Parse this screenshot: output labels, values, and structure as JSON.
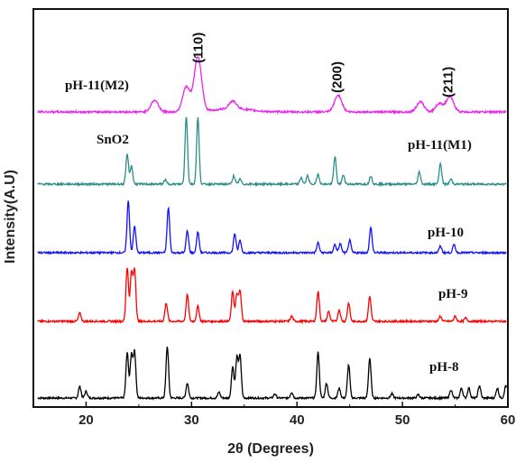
{
  "chart_data": {
    "type": "line",
    "xlabel": "2θ (Degrees)",
    "ylabel": "Intensity(A.U)",
    "xlim": [
      15,
      60
    ],
    "xticks": [
      "20",
      "30",
      "40",
      "50",
      "60"
    ],
    "grid": false,
    "legend": "none",
    "peak_labels": [
      {
        "text": "(110)",
        "x": 30.6
      },
      {
        "text": "(200)",
        "x": 43.8
      },
      {
        "text": "(211)",
        "x": 54.3
      }
    ],
    "annotations": [
      {
        "text": "SnO2",
        "x": 23.9
      }
    ],
    "series": [
      {
        "name": "pH-8",
        "color": "#000000",
        "peaks": [
          [
            19.4,
            14
          ],
          [
            20,
            8
          ],
          [
            23.9,
            55
          ],
          [
            24.3,
            52
          ],
          [
            24.6,
            55
          ],
          [
            27.7,
            62
          ],
          [
            29.6,
            18
          ],
          [
            32.6,
            7
          ],
          [
            33.9,
            38
          ],
          [
            34.3,
            48
          ],
          [
            34.6,
            50
          ],
          [
            37.9,
            5
          ],
          [
            39.5,
            7
          ],
          [
            42,
            55
          ],
          [
            42.8,
            18
          ],
          [
            44,
            12
          ],
          [
            44.9,
            40
          ],
          [
            46.9,
            48
          ],
          [
            49,
            5
          ],
          [
            51.5,
            4
          ],
          [
            54.6,
            10
          ],
          [
            55.6,
            12
          ],
          [
            56.3,
            12
          ],
          [
            57.3,
            15
          ],
          [
            59,
            12
          ],
          [
            59.8,
            15
          ]
        ]
      },
      {
        "name": "pH-9",
        "color": "#ff0000",
        "peaks": [
          [
            19.4,
            10
          ],
          [
            23.9,
            65
          ],
          [
            24.3,
            58
          ],
          [
            24.6,
            62
          ],
          [
            27.6,
            22
          ],
          [
            29.6,
            32
          ],
          [
            30.6,
            18
          ],
          [
            33.9,
            36
          ],
          [
            34.3,
            32
          ],
          [
            34.6,
            36
          ],
          [
            39.5,
            6
          ],
          [
            42,
            36
          ],
          [
            43,
            12
          ],
          [
            44,
            14
          ],
          [
            44.9,
            22
          ],
          [
            46.9,
            30
          ],
          [
            53.6,
            6
          ],
          [
            55,
            6
          ],
          [
            56,
            4
          ]
        ]
      },
      {
        "name": "pH-10",
        "color": "#1111ff",
        "peaks": [
          [
            24,
            62
          ],
          [
            24.6,
            32
          ],
          [
            27.8,
            54
          ],
          [
            29.6,
            26
          ],
          [
            30.6,
            25
          ],
          [
            34.1,
            23
          ],
          [
            34.6,
            15
          ],
          [
            42,
            12
          ],
          [
            43.6,
            10
          ],
          [
            44.1,
            11
          ],
          [
            45,
            15
          ],
          [
            47,
            30
          ],
          [
            53.6,
            8
          ],
          [
            54.9,
            10
          ]
        ]
      },
      {
        "name": "pH-11(M1)",
        "color": "#2a8f8a",
        "peaks": [
          [
            23.9,
            36
          ],
          [
            24.3,
            22
          ],
          [
            27.5,
            5
          ],
          [
            29.5,
            82
          ],
          [
            30.6,
            80
          ],
          [
            34,
            10
          ],
          [
            34.6,
            6
          ],
          [
            40.4,
            8
          ],
          [
            41,
            10
          ],
          [
            42,
            12
          ],
          [
            43.6,
            33
          ],
          [
            44.4,
            11
          ],
          [
            47,
            10
          ],
          [
            51.6,
            15
          ],
          [
            53.6,
            25
          ],
          [
            54.6,
            6
          ]
        ]
      },
      {
        "name": "pH-11(M2)",
        "color": "#ee22ee",
        "peaks": [
          [
            26.5,
            14
          ],
          [
            29.5,
            30
          ],
          [
            30.6,
            66
          ],
          [
            33.9,
            9
          ],
          [
            43.9,
            20
          ],
          [
            51.7,
            12
          ],
          [
            53.5,
            10
          ],
          [
            54.5,
            18
          ]
        ]
      }
    ]
  }
}
